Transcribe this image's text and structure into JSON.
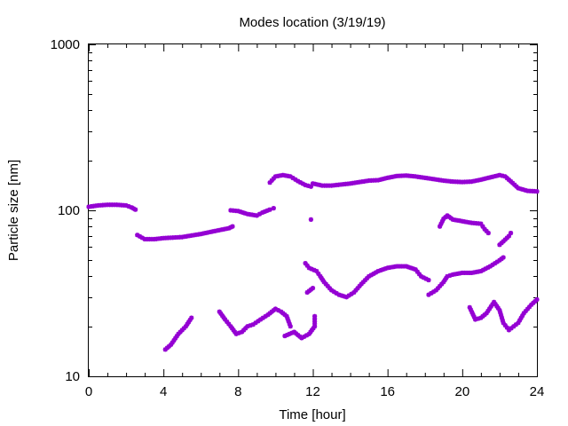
{
  "chart_data": {
    "type": "scatter",
    "title": "Modes location (3/19/19)",
    "xlabel": "Time [hour]",
    "ylabel": "Particle size [nm]",
    "xlim": [
      0,
      24
    ],
    "ylim": [
      10,
      1000
    ],
    "yscale": "log",
    "grid": false,
    "legend": "none",
    "marker_color": "#9400d3",
    "x_ticks": [
      0,
      4,
      8,
      12,
      16,
      20,
      24
    ],
    "x_tick_labels": [
      "0",
      "4",
      "8",
      "12",
      "16",
      "20",
      "24"
    ],
    "y_ticks": [
      10,
      100,
      1000
    ],
    "y_tick_labels": [
      "10",
      "100",
      "1000"
    ],
    "series": [
      {
        "segments": [
          [
            [
              0.0,
              105
            ],
            [
              0.5,
              107
            ],
            [
              1.0,
              108
            ],
            [
              1.5,
              108
            ],
            [
              2.0,
              107
            ],
            [
              2.3,
              104
            ],
            [
              2.5,
              101
            ]
          ],
          [
            [
              2.6,
              71
            ],
            [
              3.0,
              67
            ],
            [
              3.5,
              67
            ],
            [
              4.0,
              68
            ],
            [
              4.5,
              68.5
            ],
            [
              5.0,
              69
            ],
            [
              5.5,
              70.5
            ],
            [
              6.0,
              72
            ],
            [
              6.5,
              74
            ],
            [
              7.0,
              76
            ],
            [
              7.5,
              78
            ],
            [
              7.7,
              80
            ]
          ],
          [
            [
              7.6,
              100
            ],
            [
              8.0,
              99
            ],
            [
              8.5,
              95
            ],
            [
              9.0,
              93
            ],
            [
              9.3,
              97
            ],
            [
              9.7,
              101
            ],
            [
              9.9,
              103
            ]
          ],
          [
            [
              9.7,
              147
            ],
            [
              10.0,
              160
            ],
            [
              10.4,
              163
            ],
            [
              10.8,
              160
            ],
            [
              11.2,
              150
            ],
            [
              11.6,
              142
            ],
            [
              11.9,
              139
            ]
          ],
          [
            [
              12.0,
              145
            ],
            [
              12.5,
              141
            ],
            [
              13.0,
              141
            ],
            [
              13.5,
              143
            ],
            [
              14.0,
              145
            ],
            [
              14.5,
              148
            ],
            [
              15.0,
              151
            ],
            [
              15.5,
              152
            ],
            [
              16.0,
              157
            ],
            [
              16.5,
              161
            ],
            [
              17.0,
              162
            ],
            [
              17.5,
              160
            ],
            [
              18.0,
              157
            ],
            [
              18.5,
              154
            ],
            [
              19.0,
              151
            ],
            [
              19.5,
              149
            ],
            [
              20.0,
              148
            ],
            [
              20.5,
              149
            ],
            [
              21.0,
              153
            ],
            [
              21.5,
              158
            ],
            [
              22.0,
              163
            ],
            [
              22.3,
              160
            ],
            [
              22.7,
              146
            ],
            [
              23.0,
              136
            ],
            [
              23.5,
              131
            ],
            [
              24.0,
              130
            ]
          ],
          [
            [
              11.9,
              88
            ]
          ],
          [
            [
              18.8,
              80
            ],
            [
              19.0,
              89
            ],
            [
              19.2,
              93
            ],
            [
              19.5,
              88
            ],
            [
              20.0,
              86
            ],
            [
              20.5,
              84
            ],
            [
              21.0,
              83
            ],
            [
              21.2,
              77
            ],
            [
              21.4,
              73
            ]
          ],
          [
            [
              11.6,
              48
            ],
            [
              11.8,
              45
            ],
            [
              12.2,
              43
            ],
            [
              12.4,
              40
            ],
            [
              12.6,
              37
            ],
            [
              13.0,
              33
            ],
            [
              13.4,
              31
            ],
            [
              13.8,
              30
            ],
            [
              14.2,
              32
            ],
            [
              14.6,
              36
            ],
            [
              15.0,
              40
            ],
            [
              15.5,
              43
            ],
            [
              16.0,
              45
            ],
            [
              16.5,
              46
            ],
            [
              17.0,
              46
            ],
            [
              17.5,
              44
            ],
            [
              17.8,
              40
            ],
            [
              18.2,
              38
            ]
          ],
          [
            [
              11.7,
              32
            ],
            [
              12.0,
              34
            ]
          ],
          [
            [
              18.2,
              31
            ],
            [
              18.6,
              33
            ],
            [
              19.0,
              37
            ],
            [
              19.2,
              40
            ],
            [
              19.5,
              41
            ],
            [
              20.0,
              42
            ],
            [
              20.5,
              42
            ],
            [
              21.0,
              43
            ],
            [
              21.5,
              46
            ],
            [
              22.0,
              50
            ],
            [
              22.2,
              52
            ]
          ],
          [
            [
              22.0,
              62
            ],
            [
              22.2,
              65
            ],
            [
              22.5,
              70
            ],
            [
              22.6,
              73
            ]
          ],
          [
            [
              4.1,
              14.5
            ],
            [
              4.4,
              15.5
            ],
            [
              4.8,
              18
            ],
            [
              5.2,
              20
            ],
            [
              5.5,
              22.5
            ]
          ],
          [
            [
              7.0,
              24.5
            ],
            [
              7.3,
              22
            ],
            [
              7.6,
              20
            ],
            [
              7.9,
              18
            ],
            [
              8.2,
              18.5
            ],
            [
              8.5,
              20
            ],
            [
              8.8,
              20.5
            ],
            [
              9.2,
              22
            ],
            [
              9.6,
              23.5
            ],
            [
              10.0,
              25.5
            ],
            [
              10.3,
              24.5
            ],
            [
              10.6,
              23
            ],
            [
              10.8,
              20
            ]
          ],
          [
            [
              10.5,
              17.5
            ],
            [
              11.0,
              18.5
            ],
            [
              11.4,
              17
            ],
            [
              11.8,
              18
            ],
            [
              12.1,
              20
            ],
            [
              12.1,
              23
            ]
          ],
          [
            [
              20.4,
              26
            ],
            [
              20.7,
              22
            ],
            [
              21.0,
              22.5
            ],
            [
              21.3,
              24
            ],
            [
              21.7,
              28
            ],
            [
              22.0,
              25
            ],
            [
              22.2,
              21
            ],
            [
              22.5,
              19
            ],
            [
              23.0,
              21
            ],
            [
              23.3,
              24
            ],
            [
              23.7,
              27
            ],
            [
              24.0,
              29
            ]
          ]
        ]
      }
    ]
  }
}
